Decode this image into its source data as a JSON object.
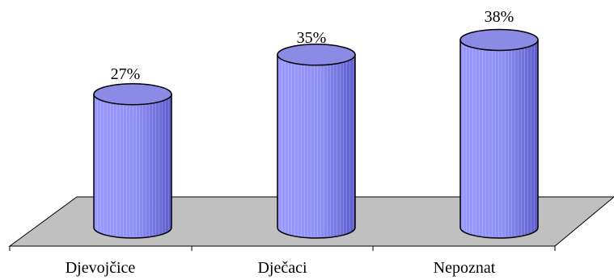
{
  "chart_data": {
    "type": "bar",
    "style": "3d-cylinder",
    "categories": [
      "Djevojčice",
      "Dječaci",
      "Nepoznat"
    ],
    "values": [
      27,
      35,
      38
    ],
    "data_labels": [
      "27%",
      "35%",
      "38%"
    ],
    "title": "",
    "xlabel": "",
    "ylabel": "",
    "ylim": [
      0,
      40
    ],
    "grid": false,
    "legend": "none",
    "colors": {
      "bar_front": "#9999ff",
      "bar_dark": "#5c5ccc",
      "bar_top": "#8b8be6",
      "floor": "#c0c0c0",
      "outline": "#000000"
    }
  }
}
